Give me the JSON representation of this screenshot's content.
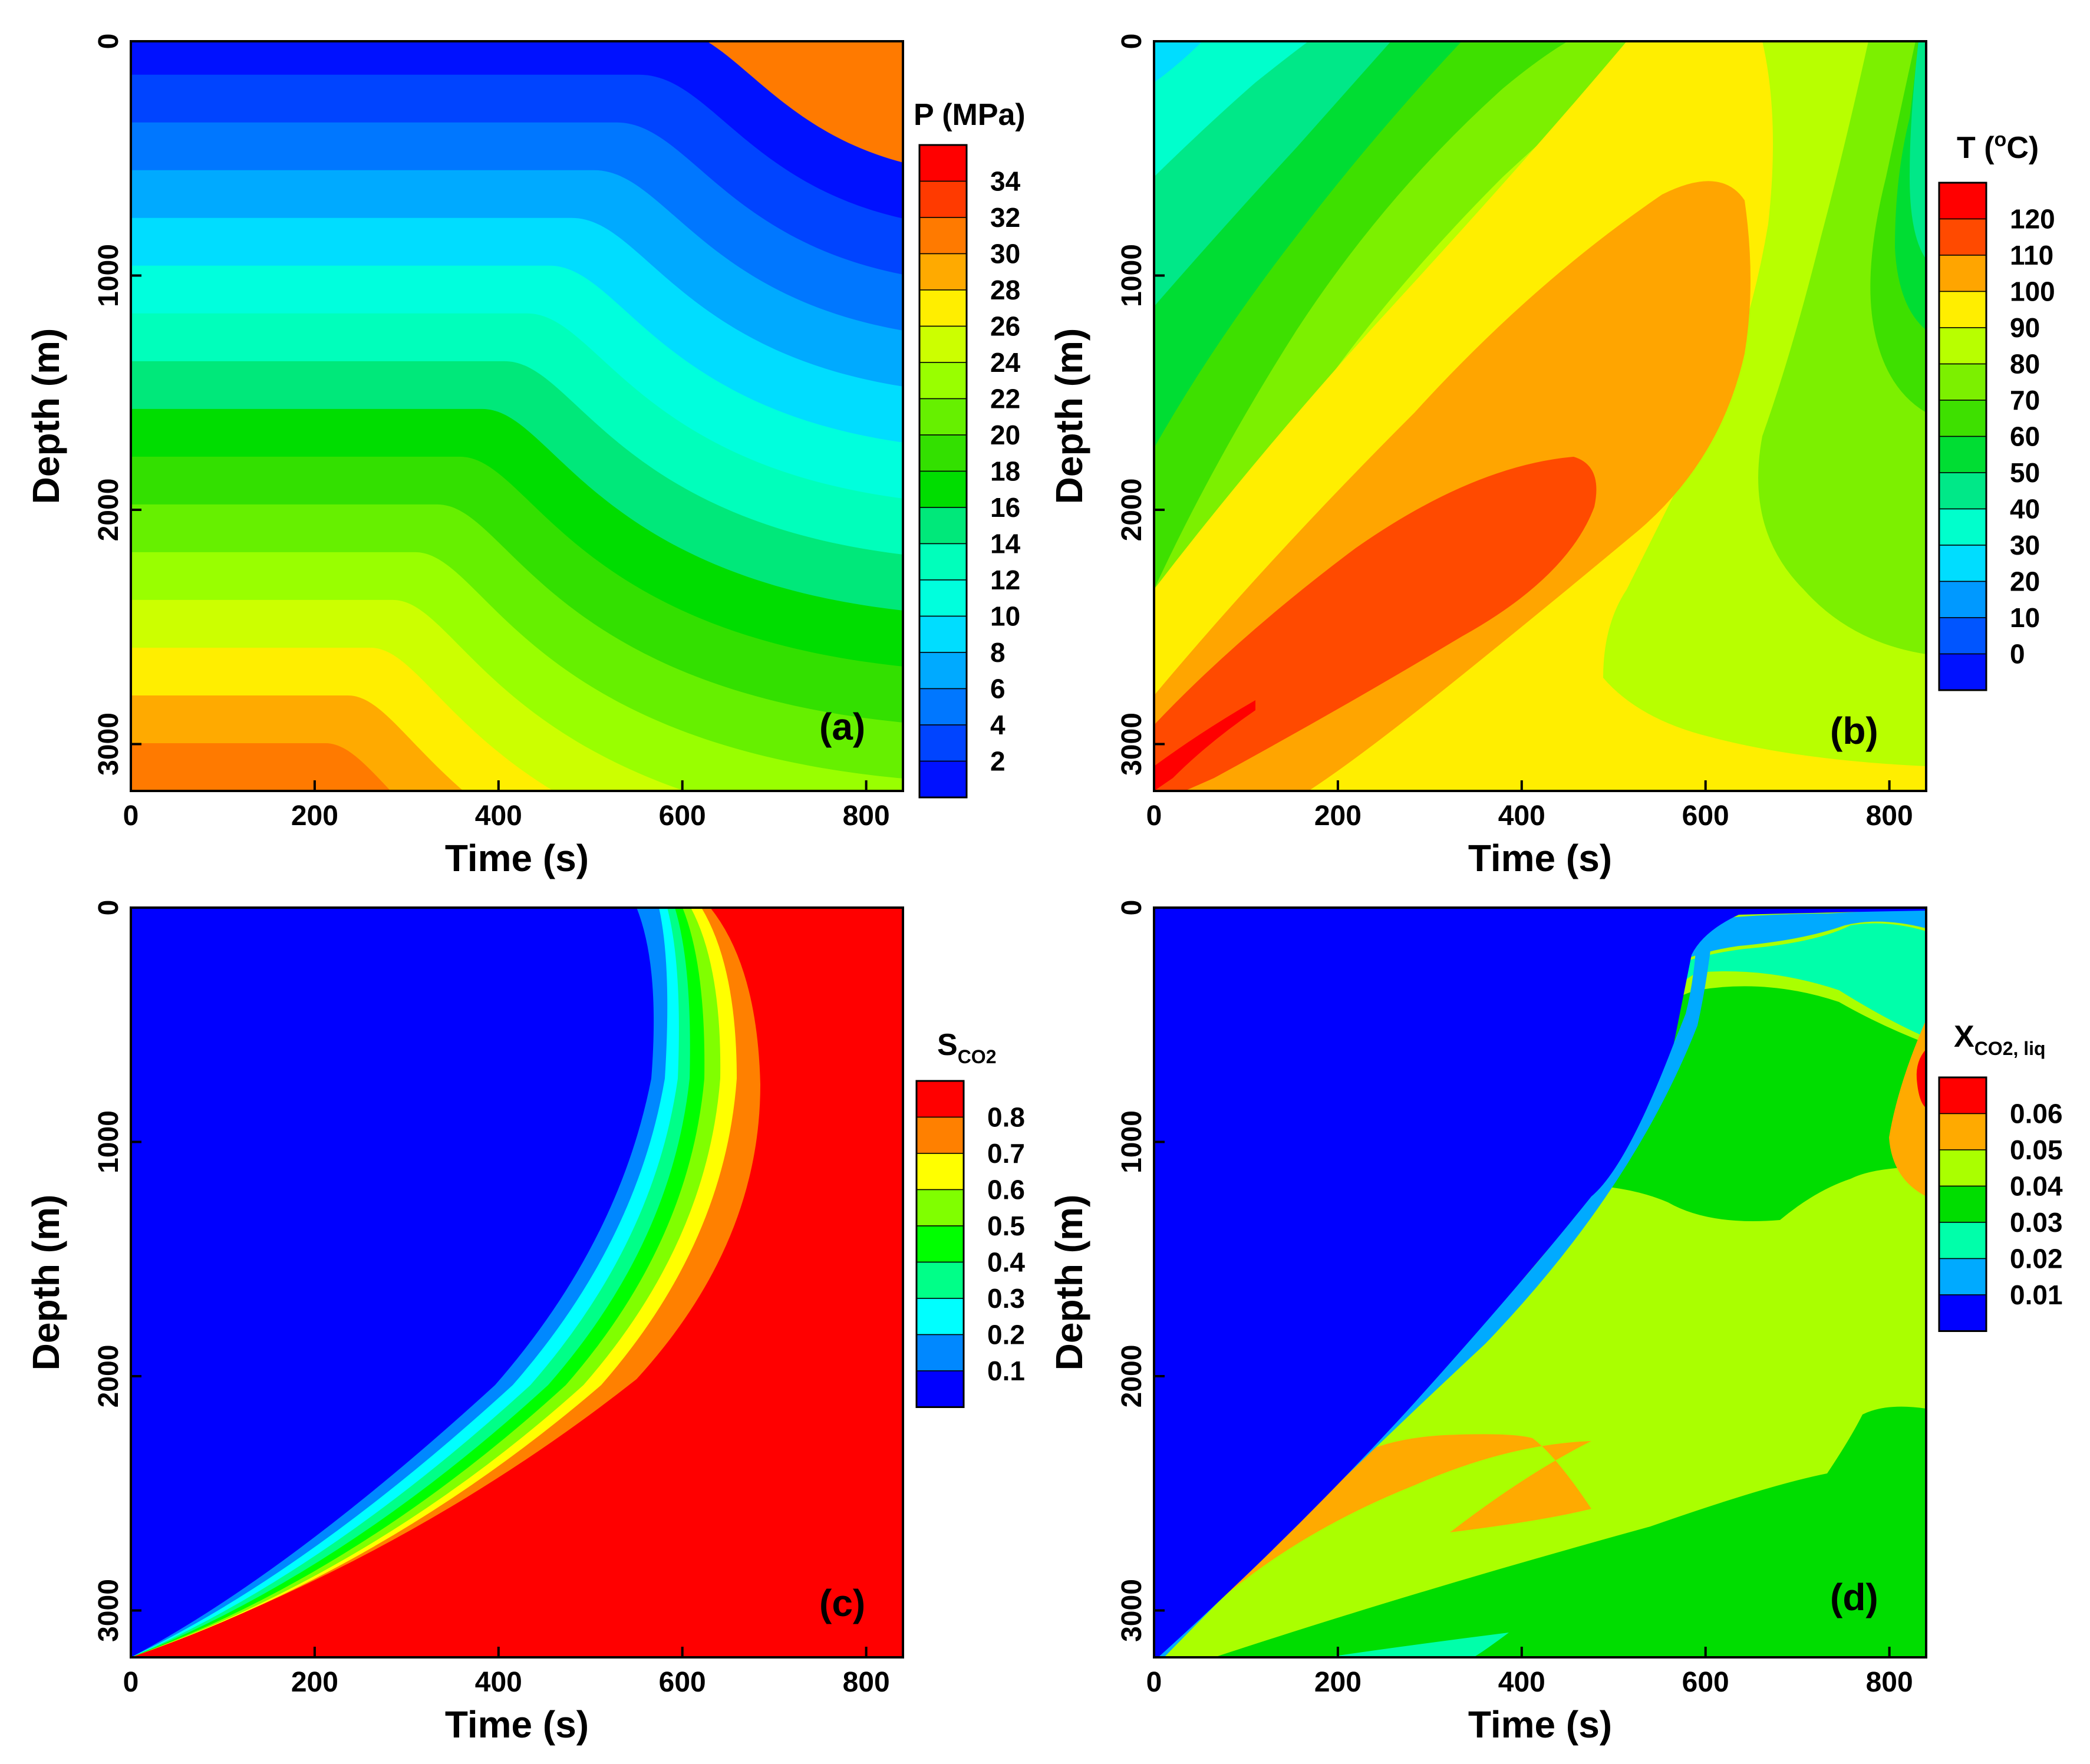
{
  "chart_data": [
    {
      "type": "heatmap",
      "panel_label": "(a)",
      "xlabel": "Time (s)",
      "ylabel": "Depth (m)",
      "xlim": [
        0,
        840
      ],
      "ylim": [
        3200,
        0
      ],
      "x_ticks": [
        "0",
        "200",
        "400",
        "600",
        "800"
      ],
      "y_ticks": [
        "0",
        "1000",
        "2000",
        "3000"
      ],
      "colorbar": {
        "title": "P (MPa)",
        "labels": [
          "34",
          "32",
          "30",
          "28",
          "26",
          "24",
          "22",
          "20",
          "18",
          "16",
          "14",
          "12",
          "10",
          "8",
          "6",
          "4",
          "2"
        ],
        "colors": [
          "#ff0000",
          "#ff3a00",
          "#ff7a00",
          "#ffaa00",
          "#ffee00",
          "#ccff00",
          "#99ff00",
          "#66f000",
          "#33e000",
          "#00dd00",
          "#00e87a",
          "#00ffbb",
          "#00ffdd",
          "#00ddff",
          "#00aaff",
          "#0077ff",
          "#0044ff",
          "#0011ff"
        ]
      }
    },
    {
      "type": "heatmap",
      "panel_label": "(b)",
      "xlabel": "Time (s)",
      "ylabel": "Depth (m)",
      "xlim": [
        0,
        840
      ],
      "ylim": [
        3200,
        0
      ],
      "x_ticks": [
        "0",
        "200",
        "400",
        "600",
        "800"
      ],
      "y_ticks": [
        "0",
        "1000",
        "2000",
        "3000"
      ],
      "colorbar": {
        "title_main": "T (",
        "title_sup": "o",
        "title_end": "C)",
        "labels": [
          "120",
          "110",
          "100",
          "90",
          "80",
          "70",
          "60",
          "50",
          "40",
          "30",
          "20",
          "10",
          "0"
        ],
        "colors": [
          "#ff0000",
          "#ff4a00",
          "#ffa500",
          "#ffee00",
          "#b8ff00",
          "#7cf000",
          "#3ee000",
          "#00dd33",
          "#00e888",
          "#00ffcc",
          "#00ddff",
          "#0099ff",
          "#0055ff",
          "#0011ff"
        ]
      }
    },
    {
      "type": "heatmap",
      "panel_label": "(c)",
      "xlabel": "Time (s)",
      "ylabel": "Depth (m)",
      "xlim": [
        0,
        840
      ],
      "ylim": [
        3200,
        0
      ],
      "x_ticks": [
        "0",
        "200",
        "400",
        "600",
        "800"
      ],
      "y_ticks": [
        "0",
        "1000",
        "2000",
        "3000"
      ],
      "colorbar": {
        "title_main": "S",
        "title_sub": "CO2",
        "labels": [
          "0.8",
          "0.7",
          "0.6",
          "0.5",
          "0.4",
          "0.3",
          "0.2",
          "0.1"
        ],
        "colors": [
          "#ff0000",
          "#ff8000",
          "#ffff00",
          "#80ff00",
          "#00ff00",
          "#00ff88",
          "#00ffff",
          "#0088ff",
          "#0000ff"
        ]
      }
    },
    {
      "type": "heatmap",
      "panel_label": "(d)",
      "xlabel": "Time (s)",
      "ylabel": "Depth (m)",
      "xlim": [
        0,
        840
      ],
      "ylim": [
        3200,
        0
      ],
      "x_ticks": [
        "0",
        "200",
        "400",
        "600",
        "800"
      ],
      "y_ticks": [
        "0",
        "1000",
        "2000",
        "3000"
      ],
      "colorbar": {
        "title_main": "X",
        "title_sub": "CO2, liq",
        "labels": [
          "0.06",
          "0.05",
          "0.04",
          "0.03",
          "0.02",
          "0.01"
        ],
        "colors": [
          "#ff0000",
          "#ffaa00",
          "#aaff00",
          "#00dd00",
          "#00ffaa",
          "#00aaff",
          "#0000ff"
        ]
      }
    }
  ]
}
